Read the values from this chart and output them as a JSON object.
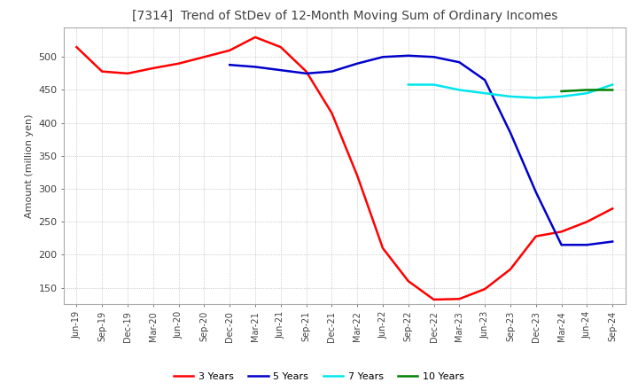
{
  "title": "[7314]  Trend of StDev of 12-Month Moving Sum of Ordinary Incomes",
  "ylabel": "Amount (million yen)",
  "ylim": [
    125,
    545
  ],
  "yticks": [
    150,
    200,
    250,
    300,
    350,
    400,
    450,
    500
  ],
  "background_color": "#ffffff",
  "grid_color": "#aaaaaa",
  "title_color": "#404040",
  "series": {
    "3years": {
      "color": "#ff0000",
      "label": "3 Years",
      "x": [
        "Jun-19",
        "Sep-19",
        "Dec-19",
        "Mar-20",
        "Jun-20",
        "Sep-20",
        "Dec-20",
        "Mar-21",
        "Jun-21",
        "Sep-21",
        "Dec-21",
        "Mar-22",
        "Jun-22",
        "Sep-22",
        "Dec-22",
        "Mar-23",
        "Jun-23",
        "Sep-23",
        "Dec-23",
        "Mar-24",
        "Jun-24",
        "Sep-24"
      ],
      "y": [
        515,
        478,
        475,
        483,
        490,
        500,
        510,
        530,
        515,
        478,
        415,
        320,
        210,
        160,
        132,
        133,
        148,
        178,
        228,
        235,
        250,
        270
      ]
    },
    "5years": {
      "color": "#0000cc",
      "label": "5 Years",
      "x": [
        "Dec-20",
        "Mar-21",
        "Jun-21",
        "Sep-21",
        "Dec-21",
        "Mar-22",
        "Jun-22",
        "Sep-22",
        "Dec-22",
        "Mar-23",
        "Jun-23",
        "Sep-23",
        "Dec-23",
        "Mar-24",
        "Jun-24",
        "Sep-24"
      ],
      "y": [
        488,
        485,
        480,
        475,
        478,
        490,
        500,
        502,
        500,
        492,
        465,
        385,
        295,
        215,
        215,
        220
      ]
    },
    "7years": {
      "color": "#00e5ee",
      "label": "7 Years",
      "x": [
        "Sep-22",
        "Dec-22",
        "Mar-23",
        "Jun-23",
        "Sep-23",
        "Dec-23",
        "Mar-24",
        "Jun-24",
        "Sep-24"
      ],
      "y": [
        458,
        458,
        450,
        445,
        440,
        438,
        440,
        445,
        458
      ]
    },
    "10years": {
      "color": "#008000",
      "label": "10 Years",
      "x": [
        "Mar-24",
        "Jun-24",
        "Sep-24"
      ],
      "y": [
        448,
        450,
        450
      ]
    }
  },
  "x_labels": [
    "Jun-19",
    "Sep-19",
    "Dec-19",
    "Mar-20",
    "Jun-20",
    "Sep-20",
    "Dec-20",
    "Mar-21",
    "Jun-21",
    "Sep-21",
    "Dec-21",
    "Mar-22",
    "Jun-22",
    "Sep-22",
    "Dec-22",
    "Mar-23",
    "Jun-23",
    "Sep-23",
    "Dec-23",
    "Mar-24",
    "Jun-24",
    "Sep-24"
  ]
}
